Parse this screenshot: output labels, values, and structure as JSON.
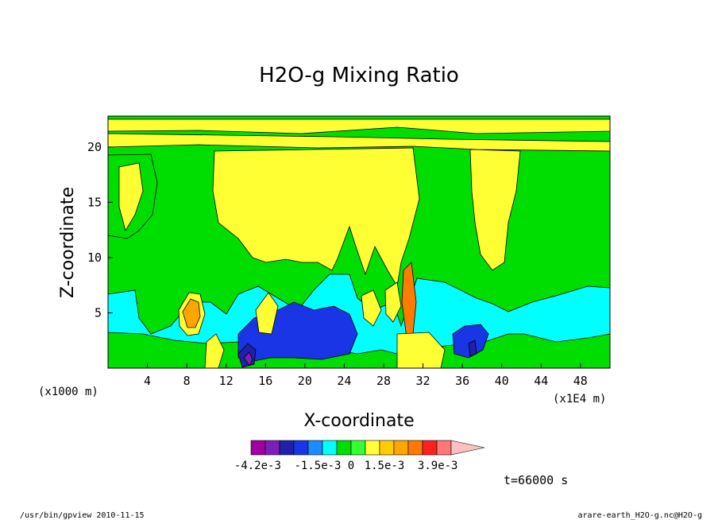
{
  "chart_data": {
    "type": "heatmap",
    "title": "H2O-g Mixing Ratio",
    "xlabel": "X-coordinate",
    "ylabel": "Z-coordinate",
    "x_unit_left": "(x1000 m)",
    "x_unit_right": "(x1E4 m)",
    "xlim": [
      0,
      51
    ],
    "ylim": [
      0,
      22.8
    ],
    "x_ticks": [
      4,
      8,
      12,
      16,
      20,
      24,
      28,
      32,
      36,
      40,
      44,
      48
    ],
    "x_tick_labels": [
      "4",
      "8",
      "12",
      "16",
      "20",
      "24",
      "28",
      "32",
      "36",
      "40",
      "44",
      "48"
    ],
    "y_ticks": [
      5,
      10,
      15,
      20
    ],
    "y_tick_labels": [
      "5",
      "10",
      "15",
      "20"
    ],
    "colorbar": {
      "colors": [
        "#a000a0",
        "#7a1fb8",
        "#2020a8",
        "#1a35e6",
        "#1a8cff",
        "#00ffff",
        "#00dd00",
        "#33ff33",
        "#ffff33",
        "#ffcc00",
        "#ffa500",
        "#ff7a00",
        "#ff2020",
        "#ff7777",
        "#ffc0c0"
      ],
      "labels": [
        "-4.2e-3",
        "-1.5e-3",
        "0",
        "1.5e-3",
        "3.9e-3"
      ],
      "label_values": [
        -0.0042,
        -0.0015,
        0,
        0.0015,
        0.0039
      ]
    },
    "regions": [
      {
        "level": "green",
        "note": "background field"
      },
      {
        "level": "yellow",
        "note": "upper region x 12-32, z 8-22"
      },
      {
        "level": "yellow",
        "note": "right column x 37-41, z 9-18"
      },
      {
        "level": "cyan",
        "note": "lower band z 1-6"
      },
      {
        "level": "blue",
        "note": "x 15-25, z 1-5"
      },
      {
        "level": "blue",
        "note": "x 35-38, z 1-3"
      },
      {
        "level": "orange",
        "note": "x 8-9, z 4-7"
      }
    ]
  },
  "timestamp": "t=66000 s",
  "footer": {
    "left": "/usr/bin/gpview  2010-11-15",
    "right": "arare-earth_H2O-g.nc@H2O-g"
  }
}
